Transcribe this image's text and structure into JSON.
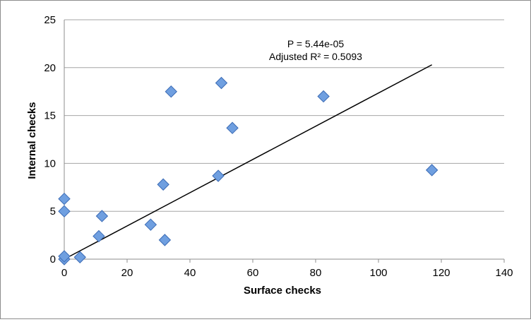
{
  "chart_data": {
    "type": "scatter",
    "title": "",
    "xlabel": "Surface checks",
    "ylabel": "Internal checks",
    "xlim": [
      0,
      140
    ],
    "ylim": [
      0,
      25
    ],
    "xticks": [
      0,
      20,
      40,
      60,
      80,
      100,
      120,
      140
    ],
    "yticks": [
      0,
      5,
      10,
      15,
      20,
      25
    ],
    "grid": "horizontal",
    "legend": "none",
    "colors": {
      "marker_fill": "#6f9fe0",
      "marker_stroke": "#3b6bb5",
      "trendline": "#000000",
      "gridline": "#a6a6a6"
    },
    "series": [
      {
        "marker": "diamond",
        "points": [
          {
            "x": 0,
            "y": 0
          },
          {
            "x": 0,
            "y": 0.3
          },
          {
            "x": 0,
            "y": 5
          },
          {
            "x": 0,
            "y": 6.3
          },
          {
            "x": 5,
            "y": 0.2
          },
          {
            "x": 11,
            "y": 2.4
          },
          {
            "x": 12,
            "y": 4.5
          },
          {
            "x": 27.5,
            "y": 3.6
          },
          {
            "x": 31.5,
            "y": 7.8
          },
          {
            "x": 32,
            "y": 2
          },
          {
            "x": 34,
            "y": 17.5
          },
          {
            "x": 49,
            "y": 8.7
          },
          {
            "x": 50,
            "y": 18.4
          },
          {
            "x": 53.5,
            "y": 13.7
          },
          {
            "x": 82.5,
            "y": 17
          },
          {
            "x": 117,
            "y": 9.3
          }
        ]
      }
    ],
    "trendline": {
      "type": "linear",
      "x_start": 0,
      "y_start": 0,
      "x_end": 117,
      "y_end": 20.3
    },
    "annotations": [
      "P = 5.44e-05",
      "Adjusted R² = 0.5093"
    ]
  }
}
